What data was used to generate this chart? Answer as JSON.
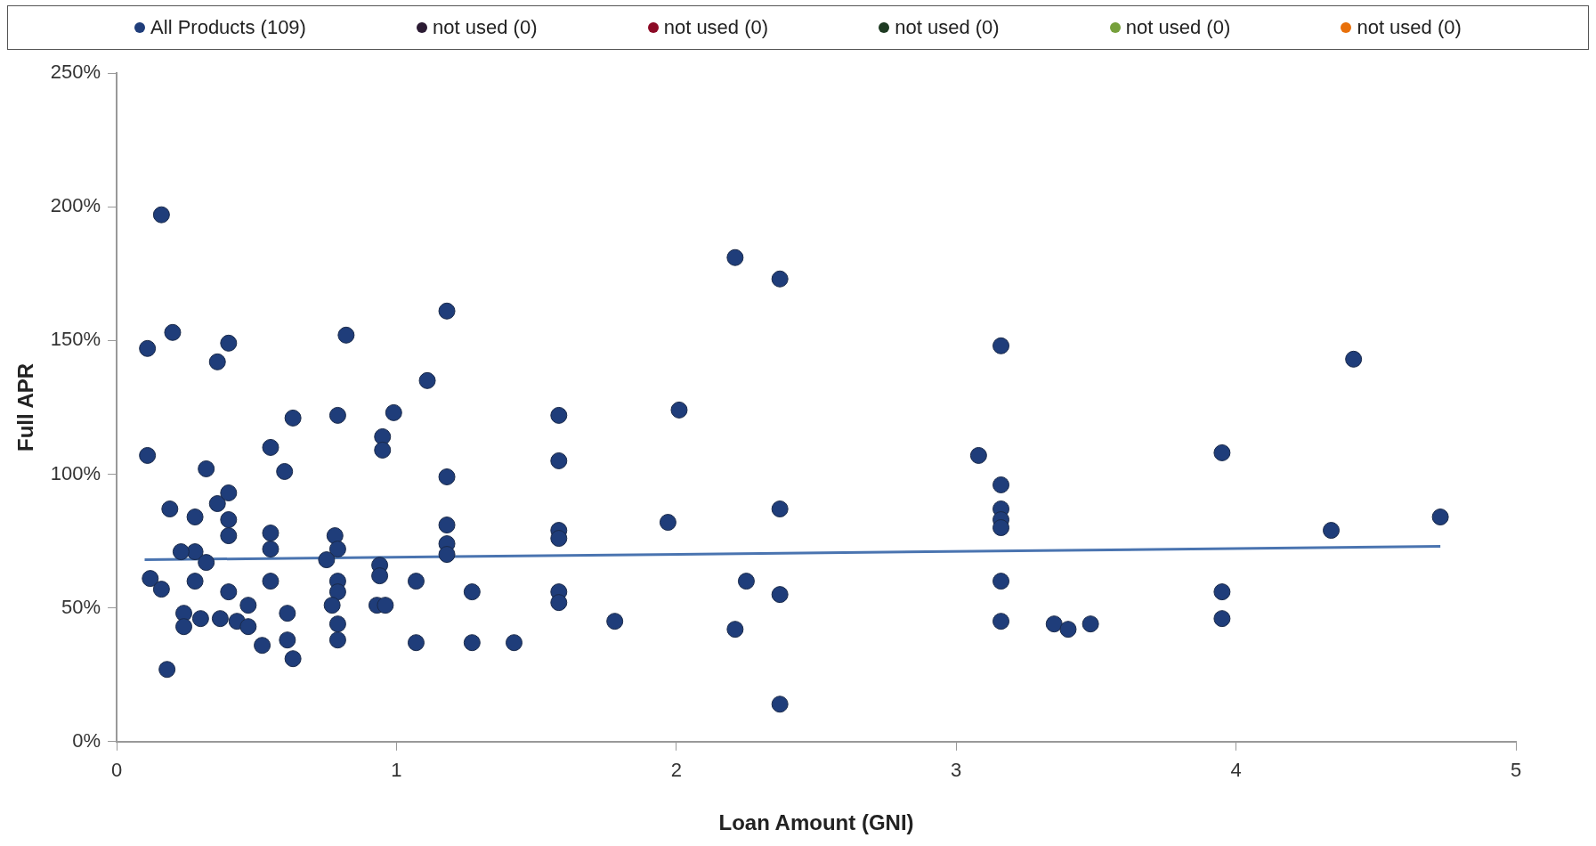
{
  "chart_data": {
    "type": "scatter",
    "xlabel": "Loan Amount (GNI)",
    "ylabel": "Full APR",
    "legend": "top",
    "grid": false,
    "marker": "circle",
    "xlim": [
      0,
      5
    ],
    "xticks": [
      0,
      1,
      2,
      3,
      4,
      5
    ],
    "ylim": [
      0,
      250
    ],
    "yticks": [
      {
        "value": 0,
        "label": "0%"
      },
      {
        "value": 50,
        "label": "50%"
      },
      {
        "value": 100,
        "label": "100%"
      },
      {
        "value": 150,
        "label": "150%"
      },
      {
        "value": 200,
        "label": "200%"
      },
      {
        "value": 250,
        "label": "250%"
      }
    ],
    "series": [
      {
        "name": "All Products (109)",
        "color": "#1f3d7a",
        "x": [
          0.16,
          0.11,
          0.2,
          0.36,
          0.4,
          0.11,
          0.32,
          0.55,
          0.63,
          0.82,
          0.79,
          0.99,
          0.95,
          0.95,
          1.11,
          1.18,
          1.18,
          0.19,
          0.28,
          0.28,
          0.36,
          0.4,
          0.4,
          0.4,
          0.6,
          0.55,
          0.55,
          0.23,
          0.32,
          0.12,
          0.16,
          0.28,
          0.4,
          0.47,
          0.55,
          0.24,
          0.24,
          0.3,
          0.37,
          0.43,
          0.47,
          0.61,
          0.52,
          0.61,
          0.63,
          0.18,
          0.78,
          0.79,
          0.75,
          0.79,
          0.79,
          0.77,
          0.79,
          0.79,
          0.94,
          0.94,
          0.93,
          0.96,
          1.07,
          1.07,
          1.18,
          1.18,
          1.18,
          1.27,
          1.27,
          1.42,
          1.58,
          1.58,
          1.58,
          1.58,
          1.58,
          1.58,
          1.78,
          1.97,
          2.01,
          2.21,
          2.21,
          2.25,
          2.37,
          2.37,
          2.37,
          2.37,
          3.08,
          3.16,
          3.16,
          3.16,
          3.16,
          3.16,
          3.16,
          3.16,
          3.35,
          3.4,
          3.48,
          3.95,
          3.95,
          3.95,
          4.34,
          4.42,
          4.73
        ],
        "values": [
          197,
          147,
          153,
          142,
          149,
          107,
          102,
          110,
          121,
          152,
          122,
          123,
          114,
          109,
          135,
          161,
          99,
          87,
          71,
          84,
          89,
          93,
          83,
          77,
          101,
          78,
          72,
          71,
          67,
          61,
          57,
          60,
          56,
          51,
          60,
          48,
          43,
          46,
          46,
          45,
          43,
          48,
          36,
          38,
          31,
          27,
          77,
          72,
          68,
          60,
          56,
          51,
          44,
          38,
          66,
          62,
          51,
          51,
          60,
          37,
          81,
          74,
          70,
          56,
          37,
          37,
          122,
          105,
          79,
          76,
          56,
          52,
          45,
          82,
          124,
          181,
          42,
          60,
          173,
          87,
          55,
          14,
          107,
          148,
          96,
          87,
          83,
          80,
          60,
          45,
          44,
          42,
          44,
          108,
          56,
          46,
          79,
          143,
          84
        ]
      },
      {
        "name": "not used (0)",
        "color": "#2b1b33"
      },
      {
        "name": "not used (0)",
        "color": "#8c0a26"
      },
      {
        "name": "not used (0)",
        "color": "#1e3a22"
      },
      {
        "name": "not used (0)",
        "color": "#76a03c"
      },
      {
        "name": "not used (0)",
        "color": "#e8700a"
      },
      {
        "type": "line",
        "color": "#4a74b0",
        "marker": "none",
        "x": [
          0.1,
          4.73
        ],
        "values": [
          68,
          73
        ]
      }
    ]
  }
}
